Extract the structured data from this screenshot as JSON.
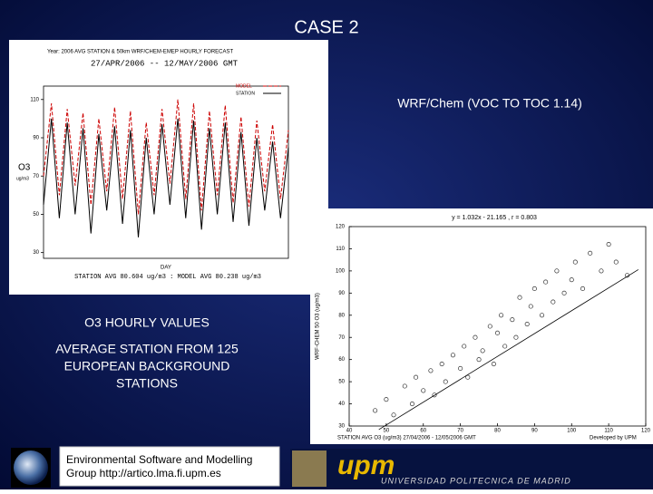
{
  "slide": {
    "title": "CASE 2",
    "subtitle": "WRF/Chem (VOC TO TOC 1.14)",
    "caption_1": "O3 HOURLY VALUES",
    "caption_2": [
      "AVERAGE STATION FROM 125",
      "EUROPEAN BACKGROUND",
      "STATIONS"
    ],
    "footer_box": [
      "Environmental Software and Modelling",
      "Group http://artico.lma.fi.upm.es"
    ],
    "logo": "upm",
    "logo_text": "UNIVERSIDAD POLITECNICA DE MADRID"
  },
  "chart_data": [
    {
      "type": "line",
      "title": "Year: 2006  AVG STATION & 50km WRF/CHEM-EMEP HOURLY FORECAST",
      "subtitle": "27/APR/2006 -- 12/MAY/2006 GMT",
      "ylabel": [
        "O3",
        "ug/m3"
      ],
      "xlabel": "DAY",
      "footer": "STATION AVG 80.604 ug/m3 : MODEL AVG 80.238 ug/m3",
      "ylim": [
        27,
        117
      ],
      "yticks": [
        30,
        50,
        70,
        90,
        110
      ],
      "series": [
        {
          "name": "MODEL",
          "color": "#cc0000",
          "values": [
            70,
            108,
            60,
            105,
            65,
            103,
            55,
            100,
            62,
            106,
            58,
            104,
            50,
            98,
            60,
            105,
            66,
            110,
            58,
            108,
            52,
            104,
            60,
            107,
            56,
            101,
            54,
            99,
            62,
            97,
            58,
            94
          ]
        },
        {
          "name": "STATION",
          "color": "#000000",
          "values": [
            55,
            100,
            48,
            98,
            50,
            95,
            40,
            92,
            52,
            96,
            45,
            94,
            38,
            90,
            50,
            97,
            55,
            100,
            48,
            99,
            42,
            95,
            50,
            98,
            46,
            93,
            44,
            90,
            52,
            88,
            48,
            85
          ]
        }
      ]
    },
    {
      "type": "scatter",
      "title": "y = 1.032x - 21.165 ,  r = 0.803",
      "ylabel": "WRF-CHEM 50 O3 (ug/m3)",
      "xlabel": "STATION AVG O3 (ug/m3)  27/04/2006 - 12/05/2006 GMT",
      "credit": "Developed by UPM",
      "xlim": [
        40,
        120
      ],
      "ylim": [
        30,
        120
      ],
      "xticks": [
        40,
        50,
        60,
        70,
        80,
        90,
        100,
        110,
        120
      ],
      "yticks": [
        30,
        40,
        50,
        60,
        70,
        80,
        90,
        100,
        110,
        120
      ],
      "color": "#333333",
      "x": [
        47,
        50,
        52,
        55,
        57,
        58,
        60,
        62,
        63,
        65,
        66,
        68,
        70,
        71,
        72,
        74,
        75,
        76,
        78,
        79,
        80,
        81,
        82,
        84,
        85,
        86,
        88,
        89,
        90,
        92,
        93,
        95,
        96,
        98,
        100,
        101,
        103,
        105,
        108,
        110,
        112,
        115
      ],
      "y": [
        37,
        42,
        35,
        48,
        40,
        52,
        46,
        55,
        44,
        58,
        50,
        62,
        56,
        66,
        52,
        70,
        60,
        64,
        75,
        58,
        72,
        80,
        66,
        78,
        70,
        88,
        76,
        84,
        92,
        80,
        95,
        86,
        100,
        90,
        96,
        104,
        92,
        108,
        100,
        112,
        104,
        98
      ],
      "fit": {
        "x": [
          48,
          118
        ],
        "y": [
          28.4,
          100.6
        ]
      }
    }
  ]
}
